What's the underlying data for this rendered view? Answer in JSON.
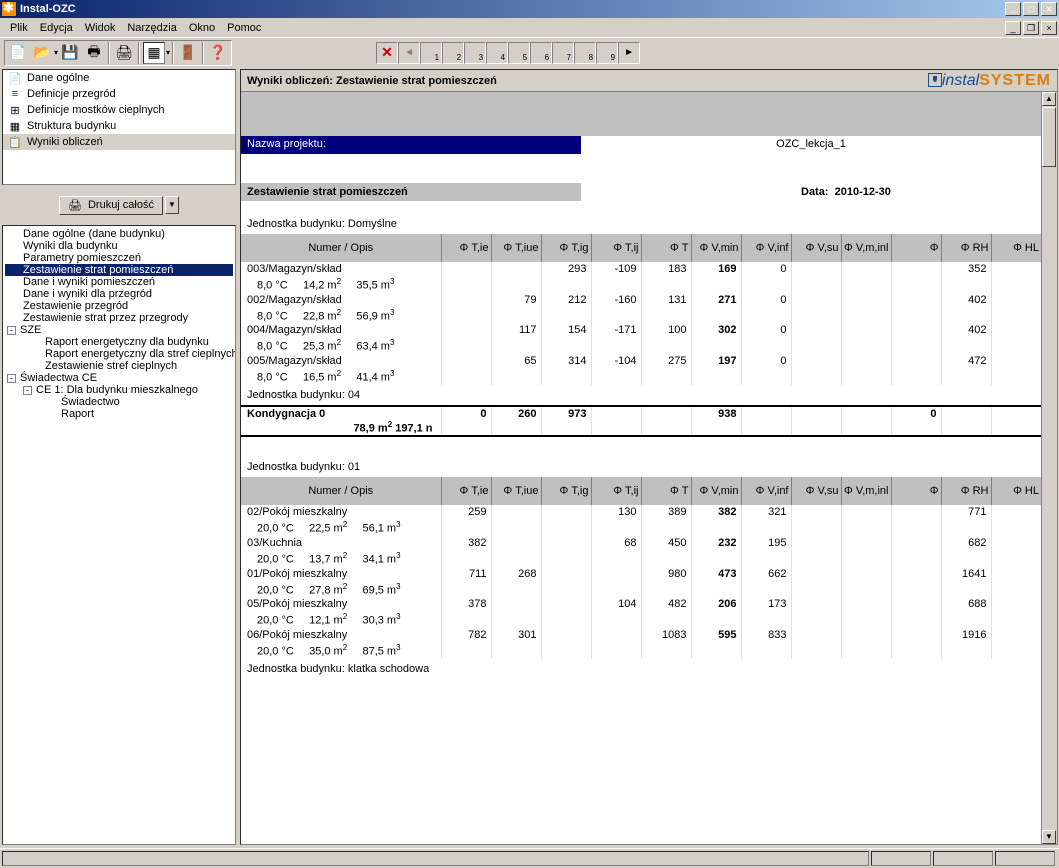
{
  "window": {
    "title": "Instal-OZC"
  },
  "menu": [
    "Plik",
    "Edycja",
    "Widok",
    "Narzędzia",
    "Okno",
    "Pomoc"
  ],
  "nav": {
    "items": [
      {
        "label": "Dane ogólne",
        "icon": "📄",
        "color": "#000"
      },
      {
        "label": "Definicje przegród",
        "icon": "≡",
        "color": "#8b0000"
      },
      {
        "label": "Definicje mostków cieplnych",
        "icon": "⊞",
        "color": "#000"
      },
      {
        "label": "Struktura budynku",
        "icon": "▦",
        "color": "#000"
      },
      {
        "label": "Wyniki obliczeń",
        "icon": "📋",
        "color": "#006",
        "selected": true
      }
    ]
  },
  "print": {
    "label": "Drukuj całość"
  },
  "tree": [
    {
      "label": "Dane ogólne (dane budynku)",
      "level": 1
    },
    {
      "label": "Wyniki dla budynku",
      "level": 1
    },
    {
      "label": "Parametry pomieszczeń",
      "level": 1
    },
    {
      "label": "Zestawienie strat pomieszczeń",
      "level": 1,
      "selected": true
    },
    {
      "label": "Dane i wyniki pomieszczeń",
      "level": 1
    },
    {
      "label": "Dane i wyniki dla przegród",
      "level": 1
    },
    {
      "label": "Zestawienie przegród",
      "level": 1
    },
    {
      "label": "Zestawienie strat przez przegrody",
      "level": 1
    },
    {
      "label": "SZE",
      "level": 0,
      "exp": "-"
    },
    {
      "label": "Raport energetyczny dla budynku",
      "level": 2
    },
    {
      "label": "Raport energetyczny dla stref cieplnych",
      "level": 2
    },
    {
      "label": "Zestawienie stref cieplnych",
      "level": 2
    },
    {
      "label": "Świadectwa CE",
      "level": 0,
      "exp": "-"
    },
    {
      "label": "CE 1: Dla budynku mieszkalnego",
      "level": 1,
      "exp": "-"
    },
    {
      "label": "Świadectwo",
      "level": 3
    },
    {
      "label": "Raport",
      "level": 3
    }
  ],
  "content": {
    "title": "Wyniki obliczeń: Zestawienie strat pomieszczeń",
    "project_label": "Nazwa projektu:",
    "project_value": "OZC_lekcja_1",
    "section_label": "Zestawienie strat pomieszczeń",
    "date_label": "Data:",
    "date_value": "2010-12-30",
    "unit_label_1": "Jednostka budynku: Domyślne",
    "unit_label_2": "Jednostka budynku: 04",
    "unit_label_3": "Jednostka budynku: 01",
    "unit_label_4": "Jednostka budynku: klatka schodowa",
    "columns": [
      "Numer / Opis",
      "Φ T,ie",
      "Φ T,iue",
      "Φ T,ig",
      "Φ T,ij",
      "Φ T",
      "Φ V,min",
      "Φ V,inf",
      "Φ V,su",
      "Φ V,m,inl",
      "Φ",
      "Φ RH",
      "Φ HL"
    ],
    "rows1": [
      {
        "name": "003/Magazyn/skład",
        "sub": "8,0 °C     14,2 m²     35,5 m³",
        "v": [
          "",
          "",
          "293",
          "-109",
          "183",
          "169",
          "0",
          "",
          "",
          "",
          "352",
          "",
          "352"
        ]
      },
      {
        "name": "002/Magazyn/skład",
        "sub": "8,0 °C     22,8 m²     56,9 m³",
        "v": [
          "",
          "79",
          "212",
          "-160",
          "131",
          "271",
          "0",
          "",
          "",
          "",
          "402",
          "",
          "402"
        ]
      },
      {
        "name": "004/Magazyn/skład",
        "sub": "8,0 °C     25,3 m²     63,4 m³",
        "v": [
          "",
          "117",
          "154",
          "-171",
          "100",
          "302",
          "0",
          "",
          "",
          "",
          "402",
          "",
          "402"
        ]
      },
      {
        "name": "005/Magazyn/skład",
        "sub": "8,0 °C     16,5 m²     41,4 m³",
        "v": [
          "",
          "65",
          "314",
          "-104",
          "275",
          "197",
          "0",
          "",
          "",
          "",
          "472",
          "",
          "472"
        ]
      }
    ],
    "summary": {
      "name": "Kondygnacja  0",
      "sub": "78,9 m²    197,1 n",
      "v": [
        "0",
        "260",
        "973",
        "",
        "",
        "938",
        "",
        "",
        "",
        "0",
        "",
        "",
        ""
      ]
    },
    "rows2": [
      {
        "name": "02/Pokój mieszkalny",
        "sub": "20,0 °C     22,5 m²     56,1 m³",
        "v": [
          "259",
          "",
          "",
          "130",
          "389",
          "382",
          "321",
          "",
          "",
          "",
          "771",
          "",
          "771"
        ]
      },
      {
        "name": "03/Kuchnia",
        "sub": "20,0 °C     13,7 m²     34,1 m³",
        "v": [
          "382",
          "",
          "",
          "68",
          "450",
          "232",
          "195",
          "",
          "",
          "",
          "682",
          "",
          "682"
        ]
      },
      {
        "name": "01/Pokój mieszkalny",
        "sub": "20,0 °C     27,8 m²     69,5 m³",
        "v": [
          "711",
          "268",
          "",
          "",
          "980",
          "473",
          "662",
          "",
          "",
          "",
          "1641",
          "",
          "1641"
        ]
      },
      {
        "name": "05/Pokój mieszkalny",
        "sub": "20,0 °C     12,1 m²     30,3 m³",
        "v": [
          "378",
          "",
          "",
          "104",
          "482",
          "206",
          "173",
          "",
          "",
          "",
          "688",
          "",
          "688"
        ]
      },
      {
        "name": "06/Pokój mieszkalny",
        "sub": "20,0 °C     35,0 m²     87,5 m³",
        "v": [
          "782",
          "301",
          "",
          "",
          "1083",
          "595",
          "833",
          "",
          "",
          "",
          "1916",
          "",
          "1916"
        ]
      }
    ],
    "bold_col_idx": 5,
    "logo": {
      "brand1": "instal",
      "brand2": "SYSTEM"
    }
  }
}
